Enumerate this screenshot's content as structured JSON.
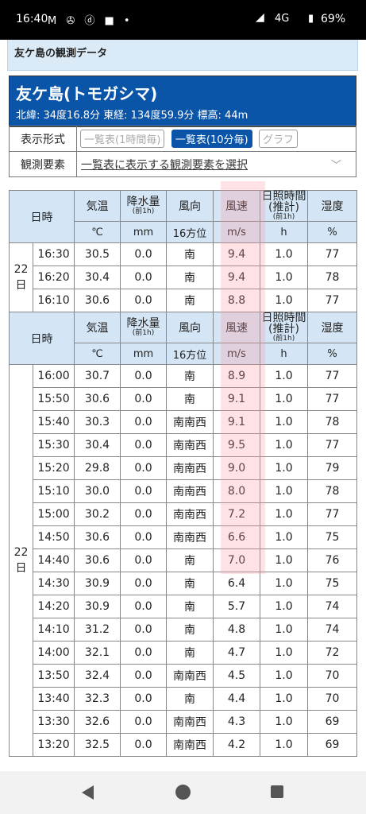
{
  "status_bar": {
    "time": "16:40",
    "icons": "M ✇ ⓓ ■ •",
    "network": "4G",
    "battery_pct": "69%"
  },
  "page_header": "友ケ島の観測データ",
  "station": {
    "name": "友ケ島(トモガシマ)",
    "coords": "北緯: 34度16.8分 東経: 134度59.9分 標高: 44m"
  },
  "display_format": {
    "label": "表示形式",
    "buttons": [
      "一覧表(1時間毎)",
      "一覧表(10分毎)",
      "グラフ"
    ],
    "active_index": 1
  },
  "elements": {
    "label": "観測要素",
    "select_text": "一覧表に表示する観測要素を選択"
  },
  "table": {
    "header": {
      "datetime": "日時",
      "temp": "気温",
      "precip": "降水量",
      "precip_sub": "(前1h)",
      "wind_dir": "風向",
      "wind_speed": "風速",
      "sunshine": "日照時間",
      "sunshine2": "(推計)",
      "sunshine_sub": "(前1h)",
      "humidity": "湿度"
    },
    "units": {
      "temp": "℃",
      "precip": "mm",
      "wind_dir": "16方位",
      "wind_speed": "m/s",
      "sunshine": "h",
      "humidity": "%"
    },
    "group1_day": "22日",
    "group1": [
      {
        "time": "16:30",
        "temp": "30.5",
        "precip": "0.0",
        "dir": "南",
        "speed": "9.4",
        "sun": "1.0",
        "hum": "77"
      },
      {
        "time": "16:20",
        "temp": "30.4",
        "precip": "0.0",
        "dir": "南",
        "speed": "9.4",
        "sun": "1.0",
        "hum": "78"
      },
      {
        "time": "16:10",
        "temp": "30.6",
        "precip": "0.0",
        "dir": "南",
        "speed": "8.8",
        "sun": "1.0",
        "hum": "77"
      }
    ],
    "group2_day": "22日",
    "group2": [
      {
        "time": "16:00",
        "temp": "30.7",
        "precip": "0.0",
        "dir": "南",
        "speed": "8.9",
        "sun": "1.0",
        "hum": "77"
      },
      {
        "time": "15:50",
        "temp": "30.6",
        "precip": "0.0",
        "dir": "南",
        "speed": "9.1",
        "sun": "1.0",
        "hum": "77"
      },
      {
        "time": "15:40",
        "temp": "30.3",
        "precip": "0.0",
        "dir": "南南西",
        "speed": "9.1",
        "sun": "1.0",
        "hum": "78"
      },
      {
        "time": "15:30",
        "temp": "30.4",
        "precip": "0.0",
        "dir": "南南西",
        "speed": "9.5",
        "sun": "1.0",
        "hum": "77"
      },
      {
        "time": "15:20",
        "temp": "29.8",
        "precip": "0.0",
        "dir": "南南西",
        "speed": "9.0",
        "sun": "1.0",
        "hum": "79"
      },
      {
        "time": "15:10",
        "temp": "30.0",
        "precip": "0.0",
        "dir": "南南西",
        "speed": "8.0",
        "sun": "1.0",
        "hum": "78"
      },
      {
        "time": "15:00",
        "temp": "30.2",
        "precip": "0.0",
        "dir": "南南西",
        "speed": "7.2",
        "sun": "1.0",
        "hum": "77"
      },
      {
        "time": "14:50",
        "temp": "30.6",
        "precip": "0.0",
        "dir": "南南西",
        "speed": "6.6",
        "sun": "1.0",
        "hum": "75"
      },
      {
        "time": "14:40",
        "temp": "30.6",
        "precip": "0.0",
        "dir": "南",
        "speed": "7.0",
        "sun": "1.0",
        "hum": "76"
      },
      {
        "time": "14:30",
        "temp": "30.9",
        "precip": "0.0",
        "dir": "南",
        "speed": "6.4",
        "sun": "1.0",
        "hum": "75"
      },
      {
        "time": "14:20",
        "temp": "30.9",
        "precip": "0.0",
        "dir": "南",
        "speed": "5.7",
        "sun": "1.0",
        "hum": "74"
      },
      {
        "time": "14:10",
        "temp": "31.2",
        "precip": "0.0",
        "dir": "南",
        "speed": "4.8",
        "sun": "1.0",
        "hum": "74"
      },
      {
        "time": "14:00",
        "temp": "32.1",
        "precip": "0.0",
        "dir": "南",
        "speed": "4.7",
        "sun": "1.0",
        "hum": "72"
      },
      {
        "time": "13:50",
        "temp": "32.4",
        "precip": "0.0",
        "dir": "南南西",
        "speed": "4.5",
        "sun": "1.0",
        "hum": "70"
      },
      {
        "time": "13:40",
        "temp": "32.3",
        "precip": "0.0",
        "dir": "南",
        "speed": "4.4",
        "sun": "1.0",
        "hum": "70"
      },
      {
        "time": "13:30",
        "temp": "32.6",
        "precip": "0.0",
        "dir": "南南西",
        "speed": "4.3",
        "sun": "1.0",
        "hum": "69"
      },
      {
        "time": "13:20",
        "temp": "32.5",
        "precip": "0.0",
        "dir": "南南西",
        "speed": "4.2",
        "sun": "1.0",
        "hum": "69"
      }
    ]
  },
  "colors": {
    "station_bg": "#0a55a8",
    "header_bg": "#d4e6f5",
    "highlight": "#ff96a0"
  },
  "nav_icons": [
    "back-icon",
    "home-icon",
    "recents-icon"
  ]
}
